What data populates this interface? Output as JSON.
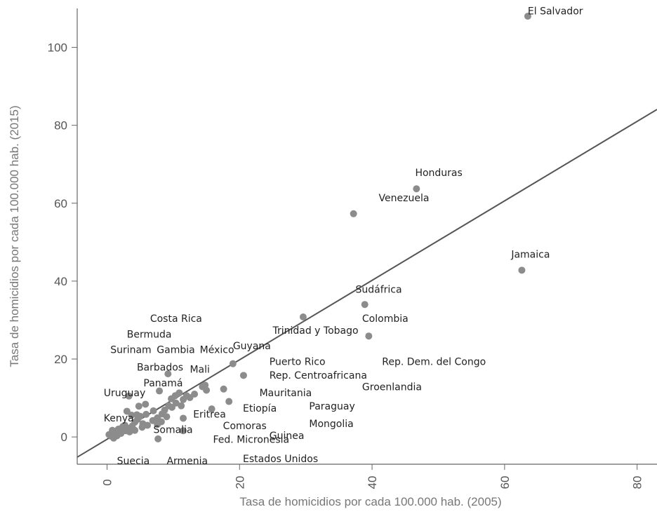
{
  "chart_data": {
    "type": "scatter",
    "xlabel": "Tasa de homicidios por cada 100.000 hab. (2005)",
    "ylabel": "Tasa de homicidios por cada 100.000 hab. (2015)",
    "xlim": [
      -4.5,
      83
    ],
    "ylim": [
      -7,
      110
    ],
    "x_ticks": [
      "0",
      "20",
      "40",
      "60",
      "80"
    ],
    "y_ticks": [
      "0",
      "20",
      "40",
      "60",
      "80",
      "100"
    ],
    "x_tick_values": [
      0,
      20,
      40,
      60,
      80
    ],
    "y_tick_values": [
      0,
      20,
      40,
      60,
      80,
      100
    ],
    "grid": false,
    "marker_color": "#8c8c8c",
    "line_color": "#555555",
    "fit_line": {
      "slope": 1.02,
      "intercept": -0.6
    },
    "labels": [
      {
        "text": "El Salvador",
        "x": 63.5,
        "y": 108.5
      },
      {
        "text": "Honduras",
        "x": 46.5,
        "y": 67.0
      },
      {
        "text": "Venezuela",
        "x": 41.0,
        "y": 60.5
      },
      {
        "text": "Jamaica",
        "x": 61.0,
        "y": 46.0
      },
      {
        "text": "Sudáfrica",
        "x": 37.5,
        "y": 37.0
      },
      {
        "text": "Colombia",
        "x": 38.5,
        "y": 29.5
      },
      {
        "text": "Trinidad y Tobago",
        "x": 25.0,
        "y": 26.5
      },
      {
        "text": "Guyana",
        "x": 19.0,
        "y": 22.5
      },
      {
        "text": "Costa Rica",
        "x": 6.5,
        "y": 29.5
      },
      {
        "text": "Bermuda",
        "x": 3.0,
        "y": 25.5
      },
      {
        "text": "Surinam",
        "x": 0.5,
        "y": 21.5
      },
      {
        "text": "Gambia",
        "x": 7.5,
        "y": 21.5
      },
      {
        "text": "México",
        "x": 14.0,
        "y": 21.5
      },
      {
        "text": "Barbados",
        "x": 4.5,
        "y": 17.0
      },
      {
        "text": "Mali",
        "x": 12.5,
        "y": 16.5
      },
      {
        "text": "Panamá",
        "x": 5.5,
        "y": 13.0
      },
      {
        "text": "Uruguay",
        "x": -0.5,
        "y": 10.5
      },
      {
        "text": "Kenya",
        "x": -0.5,
        "y": 4.0
      },
      {
        "text": "Somalia",
        "x": 7.0,
        "y": 1.0
      },
      {
        "text": "Eritrea",
        "x": 13.0,
        "y": 5.0
      },
      {
        "text": "Fed. Micronesia",
        "x": 16.0,
        "y": -1.5
      },
      {
        "text": "Suecia",
        "x": 1.5,
        "y": -7.0
      },
      {
        "text": "Armenia",
        "x": 9.0,
        "y": -7.0
      },
      {
        "text": "Estados Unidos",
        "x": 20.5,
        "y": -6.5
      },
      {
        "text": "Puerto Rico",
        "x": 24.5,
        "y": 18.5
      },
      {
        "text": "Rep. Dem. del Congo",
        "x": 41.5,
        "y": 18.5
      },
      {
        "text": "Rep. Centroafricana",
        "x": 24.5,
        "y": 15.0
      },
      {
        "text": "Mauritania",
        "x": 23.0,
        "y": 10.5
      },
      {
        "text": "Etiopía",
        "x": 20.5,
        "y": 6.5
      },
      {
        "text": "Comoras",
        "x": 17.5,
        "y": 2.0
      },
      {
        "text": "Guinea",
        "x": 24.5,
        "y": -0.5
      },
      {
        "text": "Paraguay",
        "x": 30.5,
        "y": 7.0
      },
      {
        "text": "Mongolia",
        "x": 30.5,
        "y": 2.5
      },
      {
        "text": "Groenlandia",
        "x": 38.5,
        "y": 12.0
      }
    ],
    "points": [
      [
        63.5,
        108.0
      ],
      [
        46.7,
        63.7
      ],
      [
        37.2,
        57.3
      ],
      [
        62.6,
        42.8
      ],
      [
        38.9,
        34.0
      ],
      [
        39.5,
        25.9
      ],
      [
        29.6,
        30.8
      ],
      [
        19.0,
        18.8
      ],
      [
        20.6,
        15.8
      ],
      [
        9.2,
        16.2
      ],
      [
        7.9,
        11.8
      ],
      [
        3.3,
        10.5
      ],
      [
        18.4,
        9.1
      ],
      [
        17.6,
        12.3
      ],
      [
        15.8,
        7.2
      ],
      [
        11.5,
        4.8
      ],
      [
        11.5,
        1.6
      ],
      [
        7.7,
        -0.5
      ],
      [
        14.8,
        13.3
      ],
      [
        15.0,
        12.0
      ],
      [
        14.4,
        12.9
      ],
      [
        13.2,
        11.0
      ],
      [
        12.5,
        10.1
      ],
      [
        11.5,
        9.6
      ],
      [
        10.9,
        11.3
      ],
      [
        10.3,
        10.6
      ],
      [
        9.7,
        9.8
      ],
      [
        10.4,
        8.7
      ],
      [
        9.3,
        8.0
      ],
      [
        11.2,
        8.0
      ],
      [
        12.0,
        10.6
      ],
      [
        8.7,
        6.9
      ],
      [
        9.8,
        7.6
      ],
      [
        9.0,
        5.2
      ],
      [
        8.3,
        5.9
      ],
      [
        7.6,
        4.9
      ],
      [
        8.2,
        3.9
      ],
      [
        7.6,
        3.2
      ],
      [
        6.9,
        4.2
      ],
      [
        5.9,
        5.8
      ],
      [
        5.0,
        5.3
      ],
      [
        4.6,
        4.5
      ],
      [
        4.2,
        3.8
      ],
      [
        5.4,
        3.4
      ],
      [
        3.8,
        2.8
      ],
      [
        3.2,
        2.2
      ],
      [
        2.8,
        1.6
      ],
      [
        2.4,
        2.7
      ],
      [
        2.0,
        2.1
      ],
      [
        1.6,
        1.6
      ],
      [
        1.2,
        1.0
      ],
      [
        0.9,
        0.5
      ],
      [
        0.6,
        0.2
      ],
      [
        0.3,
        0.6
      ],
      [
        1.0,
        -0.3
      ],
      [
        1.5,
        0.3
      ],
      [
        0.8,
        1.7
      ],
      [
        1.7,
        2.0
      ],
      [
        2.7,
        3.0
      ],
      [
        3.0,
        6.6
      ],
      [
        3.7,
        5.6
      ],
      [
        4.5,
        5.7
      ],
      [
        4.8,
        7.9
      ],
      [
        5.8,
        8.4
      ],
      [
        7.0,
        6.7
      ],
      [
        6.1,
        3.0
      ],
      [
        5.3,
        2.5
      ],
      [
        4.2,
        1.7
      ],
      [
        3.4,
        1.3
      ],
      [
        2.1,
        0.9
      ]
    ]
  }
}
